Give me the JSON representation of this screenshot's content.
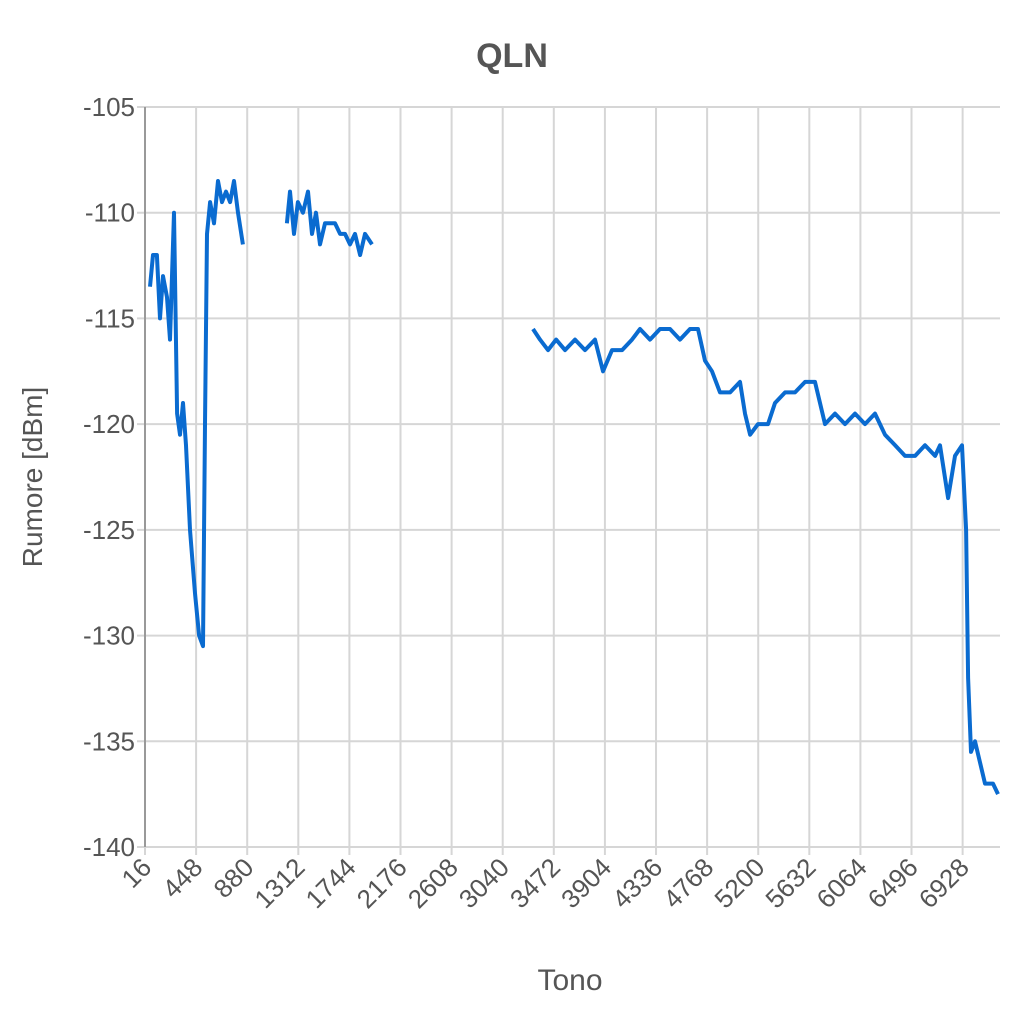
{
  "chart_data": {
    "type": "line",
    "title": "QLN",
    "x_label": "Tono",
    "y_label": "Rumore [dBm]",
    "x": [
      58,
      84,
      117,
      143,
      168,
      202,
      227,
      261,
      287,
      312,
      337,
      363,
      396,
      439,
      473,
      506,
      523,
      540,
      566,
      599,
      633,
      667,
      701,
      735,
      768,
      802,
      844,
      900,
      1216,
      1242,
      1276,
      1309,
      1352,
      1394,
      1428,
      1462,
      1495,
      1538,
      1580,
      1622,
      1665,
      1707,
      1749,
      1791,
      1834,
      1876,
      1935,
      2500,
      3296,
      3355,
      3423,
      3491,
      3567,
      3651,
      3736,
      3820,
      3888,
      3964,
      4049,
      4133,
      4201,
      4285,
      4370,
      4454,
      4539,
      4623,
      4691,
      4750,
      4809,
      4877,
      4962,
      5046,
      5088,
      5131,
      5198,
      5283,
      5342,
      5427,
      5511,
      5596,
      5680,
      5765,
      5849,
      5934,
      6018,
      6103,
      6187,
      6272,
      6357,
      6441,
      6526,
      6610,
      6695,
      6737,
      6805,
      6864,
      6923,
      6957,
      6974,
      6999,
      7033,
      7075,
      7117,
      7185,
      7227
    ],
    "series": [
      {
        "name": "QLN",
        "color": "#0a6bd0",
        "values": [
          -113.5,
          -112,
          -112,
          -115,
          -113,
          -114,
          -116,
          -110,
          -119.5,
          -120.5,
          -119,
          -121,
          -125,
          -128,
          -130,
          -130.5,
          -120,
          -111,
          -109.5,
          -110.5,
          -108.5,
          -109.5,
          -109,
          -109.5,
          -108.5,
          -110,
          -111.5,
          null,
          -110.5,
          -109,
          -111,
          -109.5,
          -110,
          -109,
          -111,
          -110,
          -111.5,
          -110.5,
          -110.5,
          -110.5,
          -111,
          -111,
          -111.5,
          -111,
          -112,
          -111,
          -111.5,
          null,
          -115.5,
          -116,
          -116.5,
          -116,
          -116.5,
          -116,
          -116.5,
          -116,
          -117.5,
          -116.5,
          -116.5,
          -116,
          -115.5,
          -116,
          -115.5,
          -115.5,
          -116,
          -115.5,
          -115.5,
          -117,
          -117.5,
          -118.5,
          -118.5,
          -118,
          -119.5,
          -120.5,
          -120,
          -120,
          -119,
          -118.5,
          -118.5,
          -118,
          -118,
          -120,
          -119.5,
          -120,
          -119.5,
          -120,
          -119.5,
          -120.5,
          -121,
          -121.5,
          -121.5,
          -121,
          -121.5,
          -121,
          -123.5,
          -121.5,
          -121,
          -125,
          -132,
          -135.5,
          -135,
          -136,
          -137,
          -137,
          -137.5
        ]
      }
    ],
    "xlim": [
      16,
      7244
    ],
    "xticks": [
      16,
      448,
      880,
      1312,
      1744,
      2176,
      2608,
      3040,
      3472,
      3904,
      4336,
      4768,
      5200,
      5632,
      6064,
      6496,
      6928
    ],
    "ylim": [
      -140,
      -105
    ],
    "yticks": [
      -140,
      -135,
      -130,
      -125,
      -120,
      -115,
      -110,
      -105
    ],
    "grid": true
  }
}
